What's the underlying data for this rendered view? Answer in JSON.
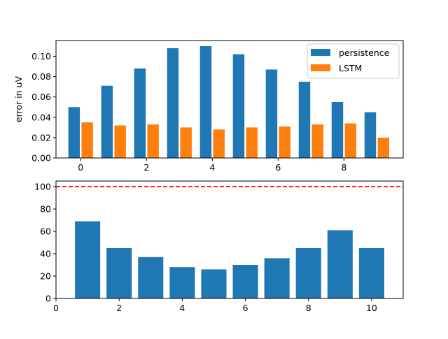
{
  "chart_data": [
    {
      "type": "bar",
      "x": [
        0,
        1,
        2,
        3,
        4,
        5,
        6,
        7,
        8,
        9
      ],
      "series": [
        {
          "name": "persistence",
          "color": "#1f77b4",
          "values": [
            0.05,
            0.071,
            0.088,
            0.108,
            0.11,
            0.102,
            0.087,
            0.075,
            0.055,
            0.045
          ]
        },
        {
          "name": "LSTM",
          "color": "#ff7f0e",
          "values": [
            0.035,
            0.032,
            0.033,
            0.03,
            0.028,
            0.03,
            0.031,
            0.033,
            0.034,
            0.02
          ]
        }
      ],
      "ylabel": "error in uV",
      "xlabel": "",
      "title": "",
      "xlim": [
        -0.75,
        9.8
      ],
      "ylim": [
        0,
        0.1155
      ],
      "xticks": [
        0,
        2,
        4,
        6,
        8
      ],
      "yticks": [
        0.0,
        0.02,
        0.04,
        0.06,
        0.08,
        0.1
      ],
      "xtick_labels": [
        "0",
        "2",
        "4",
        "6",
        "8"
      ],
      "ytick_labels": [
        "0.00",
        "0.02",
        "0.04",
        "0.06",
        "0.08",
        "0.10"
      ],
      "legend": "upper right",
      "grid": false
    },
    {
      "type": "bar",
      "x": [
        1,
        2,
        3,
        4,
        5,
        6,
        7,
        8,
        9,
        10
      ],
      "values": [
        69,
        45,
        37,
        28,
        26,
        30,
        36,
        45,
        61,
        45
      ],
      "color": "#1f77b4",
      "reference_line": {
        "y": 100,
        "color": "#ff0000",
        "style": "dashed"
      },
      "xlabel": "",
      "ylabel": "",
      "title": "",
      "xlim": [
        0,
        11
      ],
      "ylim": [
        0,
        105
      ],
      "xticks": [
        0,
        2,
        4,
        6,
        8,
        10
      ],
      "yticks": [
        0,
        20,
        40,
        60,
        80,
        100
      ],
      "xtick_labels": [
        "0",
        "2",
        "4",
        "6",
        "8",
        "10"
      ],
      "ytick_labels": [
        "0",
        "20",
        "40",
        "60",
        "80",
        "100"
      ],
      "grid": false
    }
  ]
}
